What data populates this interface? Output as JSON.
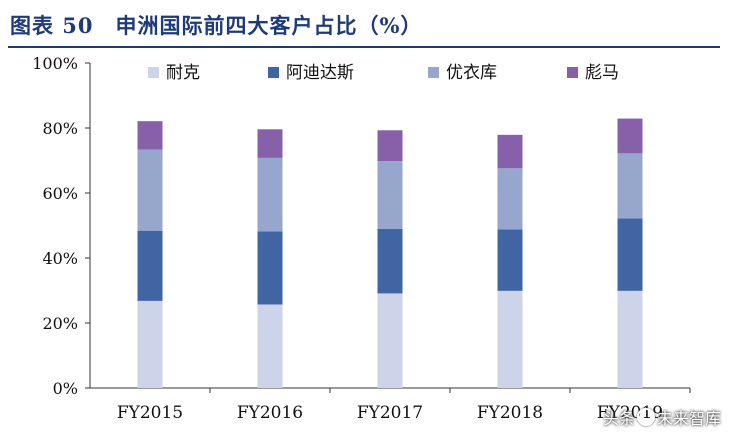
{
  "figure": {
    "title": "图表 50　申洲国际前四大客户占比（%）"
  },
  "watermark": {
    "left": "头条",
    "right": "未来智库"
  },
  "chart_data": {
    "type": "bar",
    "stacked": true,
    "categories": [
      "FY2015",
      "FY2016",
      "FY2017",
      "FY2018",
      "FY2019"
    ],
    "series": [
      {
        "name": "耐克",
        "color": "#cdd3e8",
        "values": [
          26.8,
          25.7,
          29.1,
          29.9,
          29.9
        ]
      },
      {
        "name": "阿迪达斯",
        "color": "#4164a3",
        "values": [
          21.6,
          22.5,
          19.9,
          18.9,
          22.3
        ]
      },
      {
        "name": "优衣库",
        "color": "#97a6cc",
        "values": [
          25.0,
          22.6,
          20.8,
          18.8,
          20.0
        ]
      },
      {
        "name": "彪马",
        "color": "#8660a8",
        "values": [
          8.7,
          8.8,
          9.5,
          10.3,
          10.7
        ]
      }
    ],
    "y_ticks": [
      "0%",
      "20%",
      "40%",
      "60%",
      "80%",
      "100%"
    ],
    "ylim": [
      0,
      100
    ],
    "legend_position": "top",
    "grid": false
  }
}
